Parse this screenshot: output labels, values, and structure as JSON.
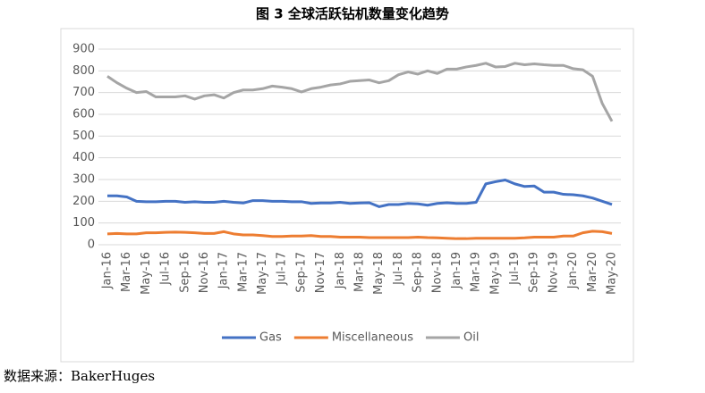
{
  "chart_data": {
    "type": "line",
    "title": "图 3 全球活跃钻机数量变化趋势",
    "source": "数据来源：BakerHuges",
    "categories": [
      "Jan-16",
      null,
      "Mar-16",
      null,
      "May-16",
      null,
      "Jul-16",
      null,
      "Sep-16",
      null,
      "Nov-16",
      null,
      "Jan-17",
      null,
      "Mar-17",
      null,
      "May-17",
      null,
      "Jul-17",
      null,
      "Sep-17",
      null,
      "Nov-17",
      null,
      "Jan-18",
      null,
      "Mar-18",
      null,
      "May-18",
      null,
      "Jul-18",
      null,
      "Sep-18",
      null,
      "Nov-18",
      null,
      "Jan-19",
      null,
      "Mar-19",
      null,
      "May-19",
      null,
      "Jul-19",
      null,
      "Sep-19",
      null,
      "Nov-19",
      null,
      "Jan-20",
      null,
      "Mar-20",
      null,
      "May-20"
    ],
    "series": [
      {
        "name": "Gas",
        "color": "#4472c4",
        "values": [
          225,
          225,
          220,
          200,
          198,
          198,
          200,
          200,
          195,
          198,
          195,
          195,
          200,
          195,
          192,
          203,
          203,
          200,
          200,
          198,
          198,
          190,
          192,
          192,
          195,
          190,
          192,
          193,
          175,
          185,
          185,
          190,
          188,
          182,
          190,
          193,
          190,
          190,
          195,
          280,
          290,
          298,
          280,
          268,
          270,
          242,
          242,
          232,
          230,
          225,
          215,
          200,
          185
        ]
      },
      {
        "name": "Miscellaneous",
        "color": "#ed7d31",
        "values": [
          50,
          52,
          50,
          50,
          55,
          55,
          57,
          58,
          57,
          55,
          52,
          52,
          60,
          50,
          45,
          45,
          42,
          38,
          38,
          40,
          40,
          42,
          38,
          38,
          35,
          35,
          35,
          33,
          33,
          33,
          33,
          33,
          35,
          33,
          32,
          30,
          28,
          28,
          30,
          30,
          30,
          30,
          30,
          32,
          35,
          35,
          35,
          40,
          40,
          55,
          62,
          60,
          52
        ]
      },
      {
        "name": "Oil",
        "color": "#a5a5a5",
        "values": [
          775,
          745,
          720,
          700,
          705,
          680,
          680,
          680,
          685,
          670,
          685,
          690,
          675,
          700,
          712,
          712,
          718,
          730,
          725,
          718,
          703,
          718,
          725,
          735,
          740,
          752,
          755,
          758,
          745,
          755,
          782,
          795,
          785,
          800,
          788,
          808,
          808,
          818,
          825,
          835,
          818,
          820,
          835,
          828,
          832,
          828,
          825,
          825,
          810,
          805,
          775,
          650,
          568
        ]
      }
    ],
    "ylim": [
      0,
      900
    ],
    "yticks": [
      0,
      100,
      200,
      300,
      400,
      500,
      600,
      700,
      800,
      900
    ],
    "grid": true,
    "legend": "bottom"
  }
}
